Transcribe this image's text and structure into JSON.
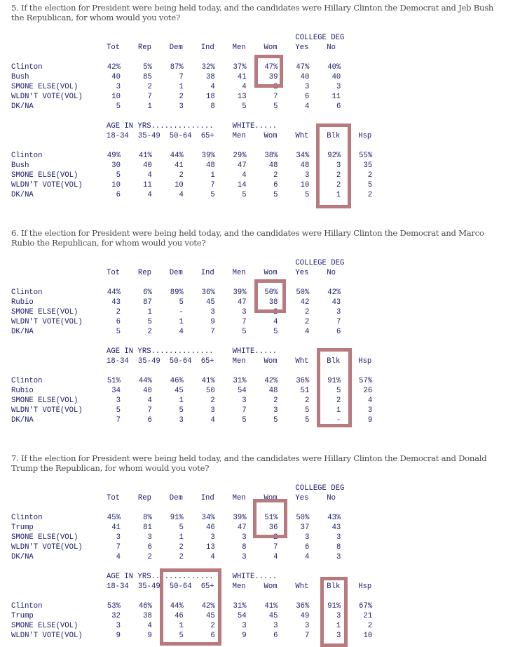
{
  "questions": [
    {
      "title": "5. If the election for President were being held today, and the candidates were Hillary Clinton the Democrat and Jeb Bush the Republican, for whom would you vote?",
      "block1": {
        "group_header": "COLLEGE DEG",
        "columns": [
          "Tot",
          "Rep",
          "Dem",
          "Ind",
          "Men",
          "Wom",
          "Yes",
          "No"
        ],
        "rows": [
          {
            "label": "Clinton",
            "values": [
              "42%",
              "5%",
              "87%",
              "32%",
              "37%",
              "47%",
              "47%",
              "40%"
            ]
          },
          {
            "label": "Bush",
            "values": [
              "40",
              "85",
              "7",
              "38",
              "41",
              "39",
              "40",
              "40"
            ]
          },
          {
            "label": "SMONE ELSE(VOL)",
            "values": [
              "3",
              "2",
              "1",
              "4",
              "4",
              "2",
              "3",
              "3"
            ]
          },
          {
            "label": "WLDN'T VOTE(VOL)",
            "values": [
              "10",
              "7",
              "2",
              "18",
              "13",
              "7",
              "6",
              "11"
            ]
          },
          {
            "label": "DK/NA",
            "values": [
              "5",
              "1",
              "3",
              "8",
              "5",
              "5",
              "4",
              "6"
            ]
          }
        ]
      },
      "block2": {
        "group_header_age": "AGE IN YRS..............",
        "group_header_white": "WHITE.....",
        "columns": [
          "18-34",
          "35-49",
          "50-64",
          "65+",
          "Men",
          "Wom",
          "Wht",
          "Blk",
          "Hsp"
        ],
        "rows": [
          {
            "label": "Clinton",
            "values": [
              "49%",
              "41%",
              "44%",
              "39%",
              "29%",
              "38%",
              "34%",
              "92%",
              "55%"
            ]
          },
          {
            "label": "Bush",
            "values": [
              "30",
              "40",
              "41",
              "48",
              "47",
              "48",
              "48",
              "3",
              "35"
            ]
          },
          {
            "label": "SMONE ELSE(VOL)",
            "values": [
              "5",
              "4",
              "2",
              "1",
              "4",
              "2",
              "3",
              "2",
              "2"
            ]
          },
          {
            "label": "WLDN'T VOTE(VOL)",
            "values": [
              "10",
              "11",
              "10",
              "7",
              "14",
              "6",
              "10",
              "2",
              "5"
            ]
          },
          {
            "label": "DK/NA",
            "values": [
              "6",
              "4",
              "4",
              "5",
              "5",
              "5",
              "5",
              "1",
              "2"
            ]
          }
        ]
      }
    },
    {
      "title": "6. If the election for President were being held today, and the candidates were Hillary Clinton the Democrat and Marco Rubio the Republican, for whom would you vote?",
      "block1": {
        "group_header": "COLLEGE DEG",
        "columns": [
          "Tot",
          "Rep",
          "Dem",
          "Ind",
          "Men",
          "Wom",
          "Yes",
          "No"
        ],
        "rows": [
          {
            "label": "Clinton",
            "values": [
              "44%",
              "6%",
              "89%",
              "36%",
              "39%",
              "50%",
              "50%",
              "42%"
            ]
          },
          {
            "label": "Rubio",
            "values": [
              "43",
              "87",
              "5",
              "45",
              "47",
              "38",
              "42",
              "43"
            ]
          },
          {
            "label": "SMONE ELSE(VOL)",
            "values": [
              "2",
              "1",
              "-",
              "3",
              "3",
              "2",
              "2",
              "3"
            ]
          },
          {
            "label": "WLDN'T VOTE(VOL)",
            "values": [
              "6",
              "5",
              "1",
              "9",
              "7",
              "4",
              "2",
              "7"
            ]
          },
          {
            "label": "DK/NA",
            "values": [
              "5",
              "2",
              "4",
              "7",
              "5",
              "5",
              "4",
              "6"
            ]
          }
        ]
      },
      "block2": {
        "group_header_age": "AGE IN YRS..............",
        "group_header_white": "WHITE.....",
        "columns": [
          "18-34",
          "35-49",
          "50-64",
          "65+",
          "Men",
          "Wom",
          "Wht",
          "Blk",
          "Hsp"
        ],
        "rows": [
          {
            "label": "Clinton",
            "values": [
              "51%",
              "44%",
              "46%",
              "41%",
              "31%",
              "42%",
              "36%",
              "91%",
              "57%"
            ]
          },
          {
            "label": "Rubio",
            "values": [
              "34",
              "40",
              "45",
              "50",
              "54",
              "48",
              "51",
              "5",
              "26"
            ]
          },
          {
            "label": "SMONE ELSE(VOL)",
            "values": [
              "3",
              "4",
              "1",
              "2",
              "3",
              "2",
              "2",
              "2",
              "4"
            ]
          },
          {
            "label": "WLDN'T VOTE(VOL)",
            "values": [
              "5",
              "7",
              "5",
              "3",
              "7",
              "3",
              "5",
              "1",
              "3"
            ]
          },
          {
            "label": "DK/NA",
            "values": [
              "7",
              "6",
              "3",
              "4",
              "5",
              "5",
              "5",
              "-",
              "9"
            ]
          }
        ]
      }
    },
    {
      "title": "7. If the election for President were being held today, and the candidates were Hillary Clinton the Democrat and Donald Trump the Republican, for whom would you vote?",
      "block1": {
        "group_header": "COLLEGE DEG",
        "columns": [
          "Tot",
          "Rep",
          "Dem",
          "Ind",
          "Men",
          "Wom",
          "Yes",
          "No"
        ],
        "rows": [
          {
            "label": "Clinton",
            "values": [
              "45%",
              "8%",
              "91%",
              "34%",
              "39%",
              "51%",
              "50%",
              "43%"
            ]
          },
          {
            "label": "Trump",
            "values": [
              "41",
              "81",
              "5",
              "46",
              "47",
              "36",
              "37",
              "43"
            ]
          },
          {
            "label": "SMONE ELSE(VOL)",
            "values": [
              "3",
              "3",
              "1",
              "3",
              "3",
              "2",
              "3",
              "3"
            ]
          },
          {
            "label": "WLDN'T VOTE(VOL)",
            "values": [
              "7",
              "6",
              "2",
              "13",
              "8",
              "7",
              "6",
              "8"
            ]
          },
          {
            "label": "DK/NA",
            "values": [
              "4",
              "2",
              "2",
              "4",
              "3",
              "4",
              "4",
              "3"
            ]
          }
        ]
      },
      "block2": {
        "group_header_age": "AGE IN YRS..............",
        "group_header_white": "WHITE.....",
        "columns": [
          "18-34",
          "35-49",
          "50-64",
          "65+",
          "Men",
          "Wom",
          "Wht",
          "Blk",
          "Hsp"
        ],
        "rows": [
          {
            "label": "Clinton",
            "values": [
              "53%",
              "46%",
              "44%",
              "42%",
              "31%",
              "41%",
              "36%",
              "91%",
              "67%"
            ]
          },
          {
            "label": "Trump",
            "values": [
              "32",
              "38",
              "46",
              "45",
              "54",
              "45",
              "49",
              "3",
              "21"
            ]
          },
          {
            "label": "SMONE ELSE(VOL)",
            "values": [
              "3",
              "4",
              "1",
              "2",
              "3",
              "3",
              "3",
              "1",
              "2"
            ]
          },
          {
            "label": "WLDN'T VOTE(VOL)",
            "values": [
              "9",
              "9",
              "5",
              "6",
              "9",
              "6",
              "7",
              "3",
              "10"
            ]
          }
        ]
      }
    }
  ],
  "highlight_color": "#b8797f",
  "text_color": "#1c1c6b"
}
